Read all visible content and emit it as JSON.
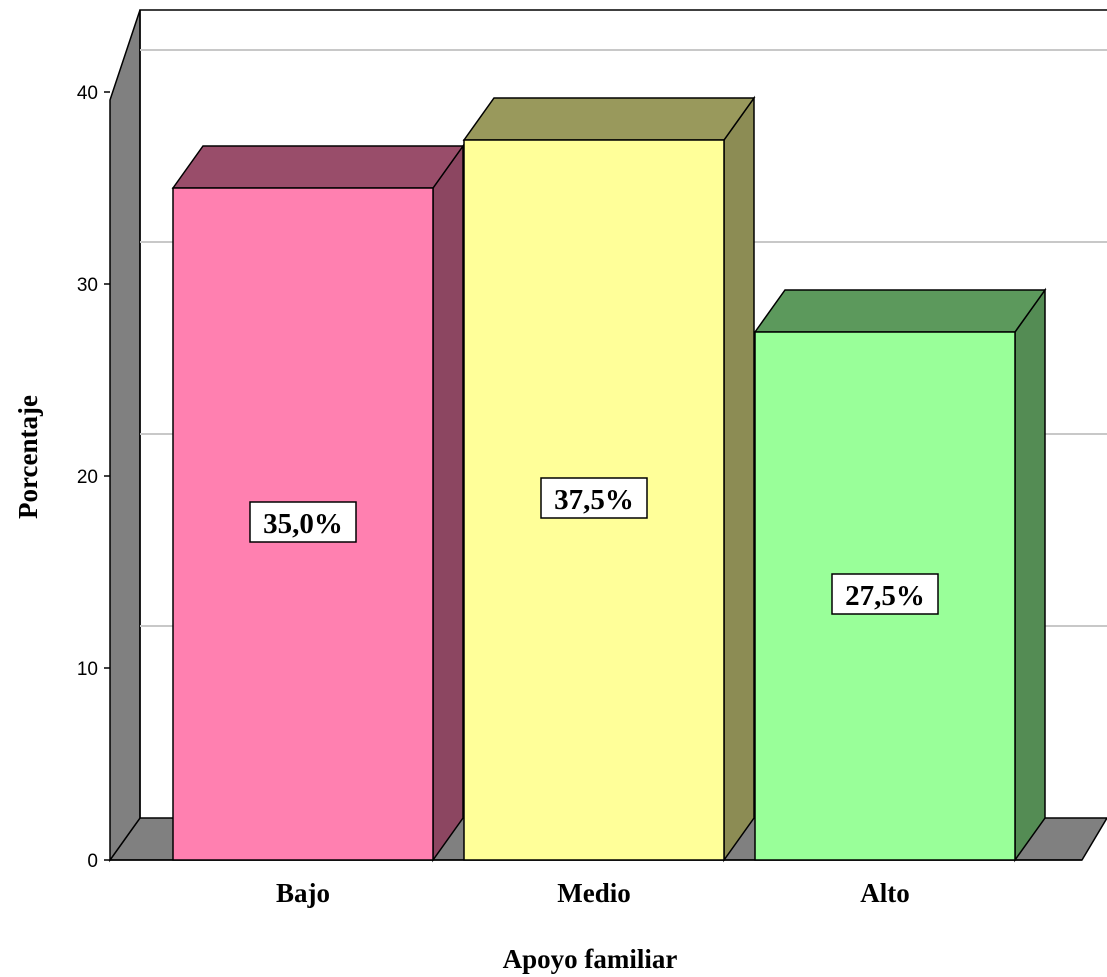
{
  "chart_data": {
    "type": "bar",
    "style": "3d",
    "categories": [
      "Bajo",
      "Medio",
      "Alto"
    ],
    "values": [
      35.0,
      37.5,
      27.5
    ],
    "data_labels": [
      "35,0%",
      "37,5%",
      "27,5%"
    ],
    "colors": [
      "#ff80b0",
      "#ffff99",
      "#99ff99"
    ],
    "ylabel": "Porcentaje",
    "xlabel": "Apoyo familiar",
    "yticks": [
      0,
      10,
      20,
      30,
      40
    ],
    "ylim": [
      0,
      40
    ],
    "grid": true,
    "legend": "none"
  }
}
